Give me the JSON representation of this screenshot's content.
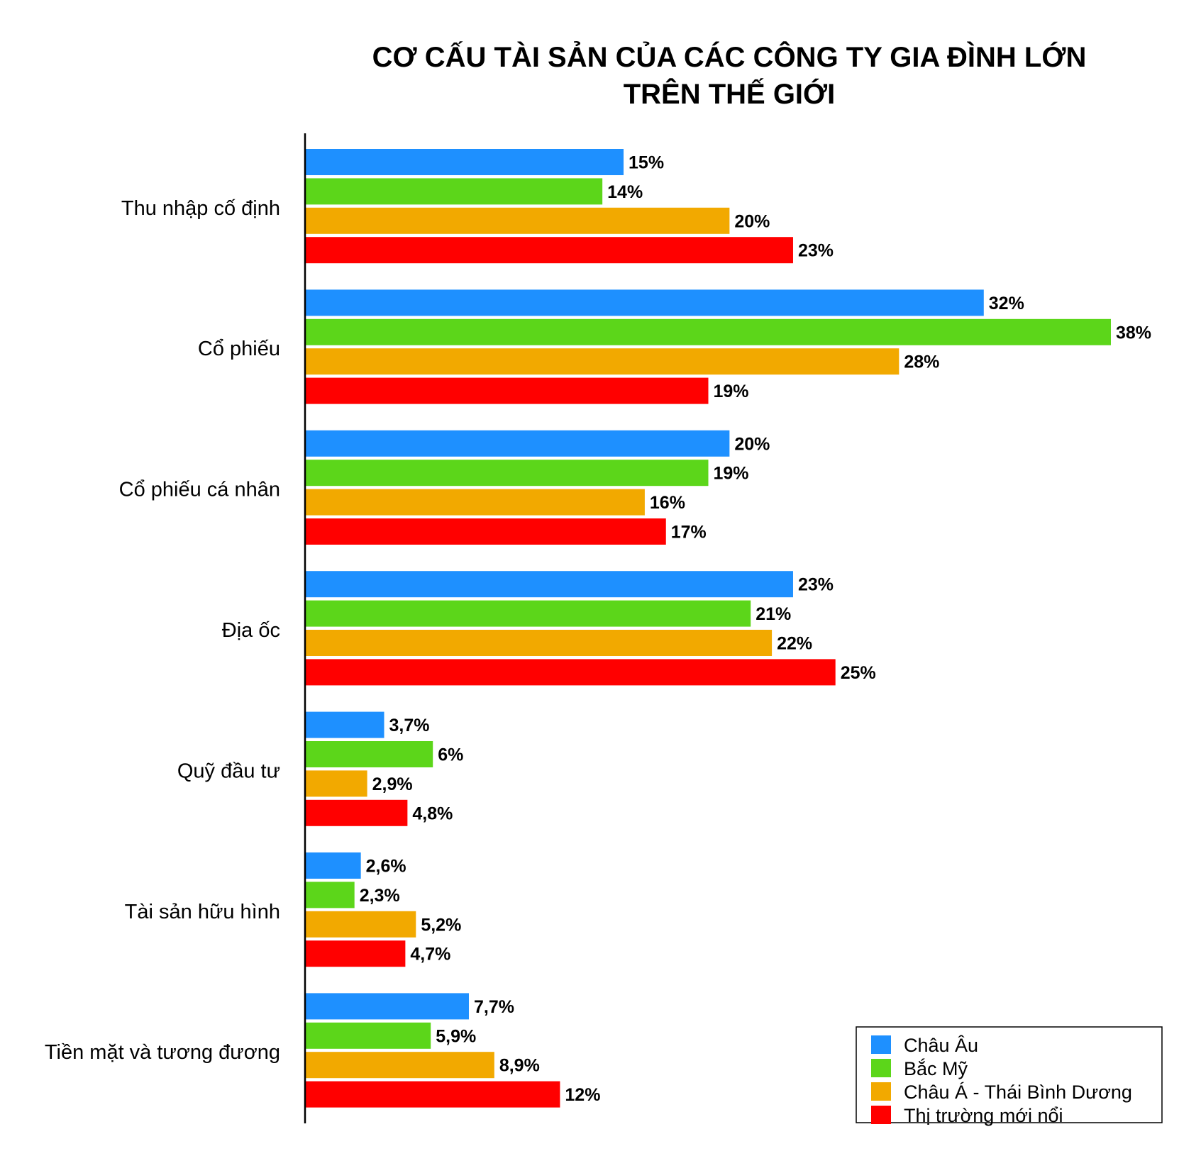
{
  "chart_data": {
    "type": "bar",
    "orientation": "horizontal",
    "title_lines": [
      "CƠ CẤU TÀI SẢN CỦA CÁC CÔNG TY GIA ĐÌNH LỚN",
      "TRÊN THẾ GIỚI"
    ],
    "categories": [
      "Thu nhập cố định",
      "Cổ phiếu",
      "Cổ phiếu cá nhân",
      "Địa ốc",
      "Quỹ đầu tư",
      "Tài sản hữu hình",
      "Tiền mặt và tương đương"
    ],
    "series": [
      {
        "name": "Châu Âu",
        "color": "#1e90ff",
        "values": [
          15,
          32,
          20,
          23,
          3.7,
          2.6,
          7.7
        ],
        "labels": [
          "15%",
          "32%",
          "20%",
          "23%",
          "3,7%",
          "2,6%",
          "7,7%"
        ]
      },
      {
        "name": "Bắc Mỹ",
        "color": "#5cd61a",
        "values": [
          14,
          38,
          19,
          21,
          6,
          2.3,
          5.9
        ],
        "labels": [
          "14%",
          "38%",
          "19%",
          "21%",
          "6%",
          "2,3%",
          "5,9%"
        ]
      },
      {
        "name": "Châu Á - Thái Bình Dương",
        "color": "#f2a900",
        "values": [
          20,
          28,
          16,
          22,
          2.9,
          5.2,
          8.9
        ],
        "labels": [
          "20%",
          "28%",
          "16%",
          "22%",
          "2,9%",
          "5,2%",
          "8,9%"
        ]
      },
      {
        "name": "Thị trường mới nổi",
        "color": "#ff0000",
        "values": [
          23,
          19,
          17,
          25,
          4.8,
          4.7,
          12
        ],
        "labels": [
          "23%",
          "19%",
          "17%",
          "25%",
          "4,8%",
          "4,7%",
          "12%"
        ]
      }
    ],
    "xlim": [
      0,
      38
    ],
    "legend_position": "bottom-right",
    "grid": false
  }
}
